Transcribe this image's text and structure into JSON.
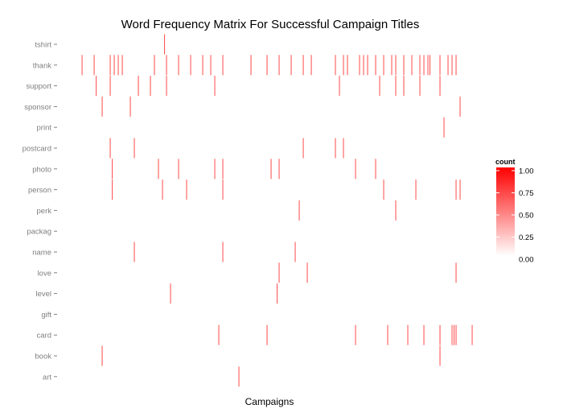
{
  "chart_data": {
    "type": "heatmap",
    "title": "Word Frequency Matrix For Successful Campaign Titles",
    "xlabel": "Campaigns",
    "ylabel": "",
    "categories": [
      "tshirt",
      "thank",
      "support",
      "sponsor",
      "print",
      "postcard",
      "photo",
      "person",
      "perk",
      "packag",
      "name",
      "love",
      "level",
      "gift",
      "card",
      "book",
      "art"
    ],
    "x_range": [
      0,
      100
    ],
    "grid": false,
    "legend": {
      "title": "count",
      "position": "right",
      "min": 0,
      "max": 1,
      "ticks": [
        "1.00",
        "0.75",
        "0.50",
        "0.25",
        "0.00"
      ],
      "color_low": "#ffffff",
      "color_high": "#ff0000"
    },
    "cells": [
      {
        "word": "tshirt",
        "x": [
          24.5
        ]
      },
      {
        "word": "thank",
        "x": [
          4,
          7,
          11,
          12,
          13,
          14,
          22,
          25,
          28,
          31,
          34,
          36,
          39,
          46,
          50,
          53,
          56,
          59,
          61,
          67,
          69,
          70,
          73,
          74,
          75,
          77,
          79,
          81,
          82,
          84,
          86,
          88,
          89,
          90,
          90.5,
          93,
          95,
          96,
          97
        ]
      },
      {
        "word": "support",
        "x": [
          7.5,
          11,
          18,
          21,
          25,
          37,
          68,
          78,
          82,
          84,
          88,
          93
        ]
      },
      {
        "word": "sponsor",
        "x": [
          9,
          16,
          98
        ]
      },
      {
        "word": "print",
        "x": [
          94
        ]
      },
      {
        "word": "postcard",
        "x": [
          11,
          17,
          59,
          67,
          69
        ]
      },
      {
        "word": "photo",
        "x": [
          11.5,
          23,
          28,
          37,
          39,
          51,
          53,
          72,
          77
        ]
      },
      {
        "word": "person",
        "x": [
          11.5,
          24,
          30,
          39,
          79,
          87,
          97,
          98
        ]
      },
      {
        "word": "perk",
        "x": [
          58,
          82
        ]
      },
      {
        "word": "packag",
        "x": []
      },
      {
        "word": "name",
        "x": [
          17,
          39,
          57
        ]
      },
      {
        "word": "love",
        "x": [
          53,
          60,
          97
        ]
      },
      {
        "word": "level",
        "x": [
          26,
          52.5
        ]
      },
      {
        "word": "gift",
        "x": []
      },
      {
        "word": "card",
        "x": [
          38,
          50,
          72,
          80,
          85,
          89,
          93,
          96,
          96.5,
          97,
          101
        ]
      },
      {
        "word": "book",
        "x": [
          9,
          93
        ]
      },
      {
        "word": "art",
        "x": [
          43
        ]
      }
    ]
  }
}
